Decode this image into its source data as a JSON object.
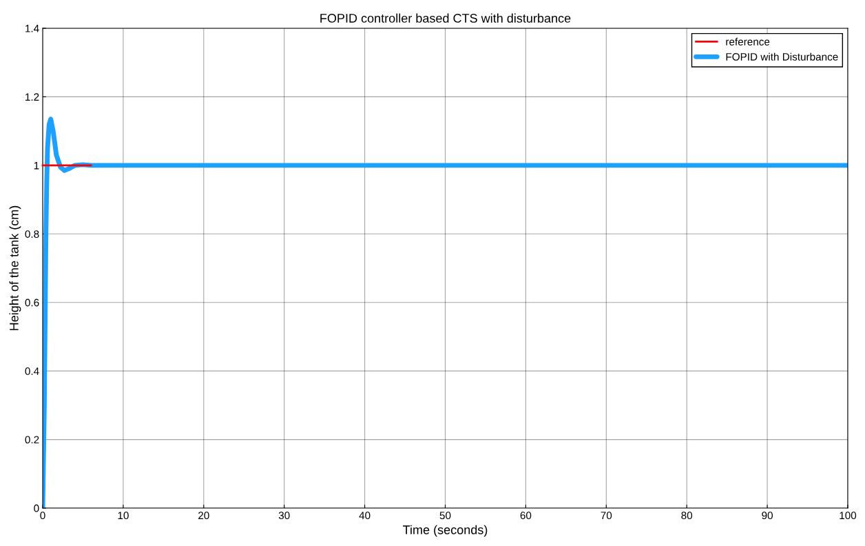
{
  "chart_data": {
    "type": "line",
    "title": "FOPID controller based CTS with disturbance",
    "xlabel": "Time (seconds)",
    "ylabel": "Height of the tank (cm)",
    "series": [
      {
        "name": "reference",
        "type": "step",
        "color": "#ff0000",
        "x": [
          0,
          6
        ],
        "values": [
          1,
          1
        ]
      },
      {
        "name": "FOPID with Disturbance",
        "color": "#1ea0ff",
        "x": [
          0,
          0.1,
          0.2,
          0.3,
          0.4,
          0.5,
          0.6,
          0.8,
          1.0,
          1.3,
          1.7,
          2.2,
          2.7,
          3.2,
          4,
          5,
          6,
          100
        ],
        "values": [
          0,
          0.15,
          0.3,
          0.55,
          0.8,
          0.95,
          1.05,
          1.12,
          1.135,
          1.1,
          1.03,
          0.995,
          0.985,
          0.99,
          1.0,
          1.002,
          1.0,
          1.0
        ]
      }
    ],
    "xlim": [
      0,
      100
    ],
    "xticks": [
      0,
      10,
      20,
      30,
      40,
      50,
      60,
      70,
      80,
      90,
      100
    ],
    "ylim": [
      0,
      1.4
    ],
    "yticks": [
      0,
      0.2,
      0.4,
      0.6,
      0.8,
      1,
      1.2,
      1.4
    ],
    "grid": true,
    "legend": "top right"
  }
}
